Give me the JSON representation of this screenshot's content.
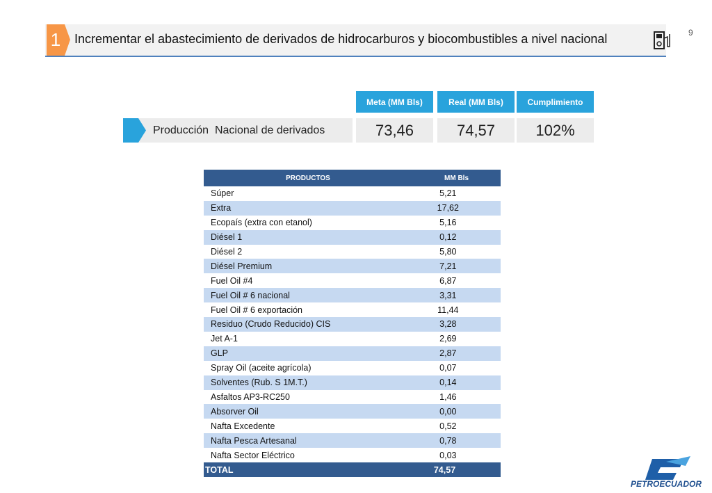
{
  "page_number": "9",
  "header": {
    "number": "1",
    "title": "Incrementar el abastecimiento de derivados de hidrocarburos y biocombustibles a nivel nacional"
  },
  "kpi": {
    "headers": [
      "Meta (MM Bls)",
      "Real (MM Bls)",
      "Cumplimiento"
    ],
    "label": "Producción  Nacional de derivados",
    "values": [
      "73,46",
      "74,57",
      "102%"
    ]
  },
  "table": {
    "header": [
      "PRODUCTOS",
      "MM Bls"
    ],
    "rows": [
      [
        "Súper",
        "5,21"
      ],
      [
        "Extra",
        "17,62"
      ],
      [
        "Ecopaís (extra con etanol)",
        "5,16"
      ],
      [
        "Diésel 1",
        "0,12"
      ],
      [
        "Diésel 2",
        "5,80"
      ],
      [
        "Diésel Premium",
        "7,21"
      ],
      [
        "Fuel Oil #4",
        "6,87"
      ],
      [
        "Fuel Oil # 6 nacional",
        "3,31"
      ],
      [
        "Fuel Oil # 6 exportación",
        "11,44"
      ],
      [
        "Residuo (Crudo Reducido) CIS",
        "3,28"
      ],
      [
        "Jet A-1",
        "2,69"
      ],
      [
        "GLP",
        "2,87"
      ],
      [
        "Spray Oil (aceite agrícola)",
        "0,07"
      ],
      [
        "Solventes (Rub. S 1M.T.)",
        "0,14"
      ],
      [
        "Asfaltos AP3-RC250",
        "1,46"
      ],
      [
        "Absorver Oil",
        "0,00"
      ],
      [
        "Nafta Excedente",
        "0,52"
      ],
      [
        "Nafta Pesca Artesanal",
        "0,78"
      ],
      [
        "Nafta Sector Eléctrico",
        "0,03"
      ]
    ],
    "total": [
      "TOTAL",
      "74,57"
    ]
  },
  "logo": {
    "text": "PETROECUADOR"
  }
}
